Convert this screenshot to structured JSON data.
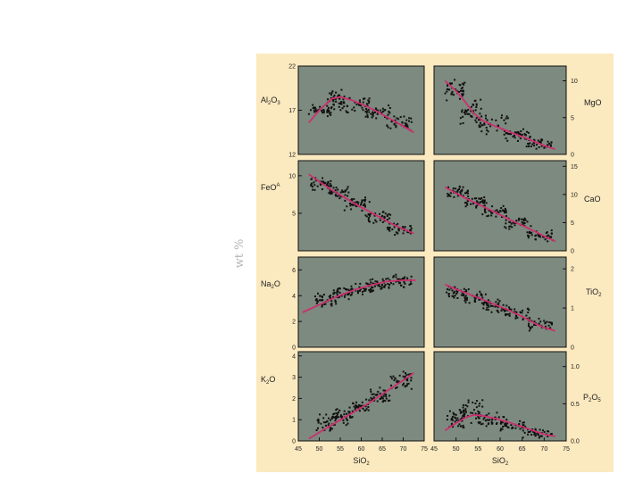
{
  "side_label": "wt %",
  "colors": {
    "background": "#fbe9bf",
    "plot_area": "#7d8a7f",
    "points": "#111111",
    "trend": "#cc2f6e",
    "frame": "#111111"
  },
  "chart_data": [
    {
      "type": "scatter",
      "panel": "Al2O3",
      "label": {
        "main": "Al",
        "sub1": "2",
        "mid": "O",
        "sub2": "3"
      },
      "xlim": [
        45,
        75
      ],
      "ylim": [
        12,
        22
      ],
      "yticks": [
        "12",
        "17",
        "22"
      ],
      "ytick_values": [
        12,
        17,
        22
      ],
      "xticks": [],
      "xlabel": "",
      "grid": false,
      "trend": [
        [
          47.5,
          15.6
        ],
        [
          50,
          17.0
        ],
        [
          53,
          18.3
        ],
        [
          55,
          18.5
        ],
        [
          58,
          18.1
        ],
        [
          61,
          17.5
        ],
        [
          64,
          16.8
        ],
        [
          67,
          16.0
        ],
        [
          70,
          15.2
        ],
        [
          72.5,
          14.5
        ]
      ],
      "cloud": [
        [
          47.5,
          53,
          16.0,
          18.0
        ],
        [
          52,
          56,
          16.8,
          19.6
        ],
        [
          55,
          62,
          16.5,
          18.8
        ],
        [
          61,
          67,
          16.0,
          17.6
        ],
        [
          66,
          72,
          14.6,
          16.6
        ]
      ]
    },
    {
      "type": "scatter",
      "panel": "MgO",
      "label": {
        "main": "MgO",
        "sub1": "",
        "mid": "",
        "sub2": ""
      },
      "xlim": [
        45,
        75
      ],
      "ylim": [
        0,
        12
      ],
      "yticks": [
        "0",
        "5",
        "10"
      ],
      "ytick_values": [
        0,
        5,
        10
      ],
      "xticks": [],
      "xlabel": "",
      "grid": false,
      "trend": [
        [
          47.5,
          10.0
        ],
        [
          50,
          8.6
        ],
        [
          52,
          7.2
        ],
        [
          54,
          5.6
        ],
        [
          56,
          4.6
        ],
        [
          59,
          3.8
        ],
        [
          62,
          3.1
        ],
        [
          65,
          2.4
        ],
        [
          68,
          1.7
        ],
        [
          70,
          1.2
        ],
        [
          72.5,
          0.7
        ]
      ],
      "cloud": [
        [
          47.5,
          52,
          7.0,
          10.2
        ],
        [
          51,
          56,
          4.0,
          8.0
        ],
        [
          55,
          62,
          2.6,
          5.6
        ],
        [
          61,
          67,
          1.6,
          3.6
        ],
        [
          66,
          72,
          0.6,
          2.2
        ]
      ]
    },
    {
      "type": "scatter",
      "panel": "FeO*",
      "label": {
        "main": "FeO",
        "sub1": "",
        "mid": "",
        "sub2": "",
        "sup": "A"
      },
      "xlim": [
        45,
        75
      ],
      "ylim": [
        0,
        12
      ],
      "yticks": [
        "5",
        "10"
      ],
      "ytick_values": [
        5,
        10
      ],
      "xticks": [],
      "xlabel": "",
      "grid": false,
      "trend": [
        [
          47.5,
          10.2
        ],
        [
          50,
          9.2
        ],
        [
          53,
          8.1
        ],
        [
          56,
          7.1
        ],
        [
          59,
          6.1
        ],
        [
          62,
          5.2
        ],
        [
          65,
          4.3
        ],
        [
          68,
          3.4
        ],
        [
          70,
          2.9
        ],
        [
          72.5,
          2.3
        ]
      ],
      "cloud": [
        [
          48,
          53,
          8.0,
          10.0
        ],
        [
          52,
          57,
          6.8,
          8.8
        ],
        [
          56,
          62,
          5.2,
          7.2
        ],
        [
          61,
          67,
          3.6,
          5.6
        ],
        [
          66,
          72,
          2.0,
          3.8
        ]
      ]
    },
    {
      "type": "scatter",
      "panel": "CaO",
      "label": {
        "main": "CaO",
        "sub1": "",
        "mid": "",
        "sub2": ""
      },
      "xlim": [
        45,
        75
      ],
      "ylim": [
        0,
        16
      ],
      "yticks": [
        "0",
        "5",
        "10",
        "15"
      ],
      "ytick_values": [
        0,
        5,
        10,
        15
      ],
      "xticks": [],
      "xlabel": "",
      "grid": false,
      "trend": [
        [
          47.5,
          11.3
        ],
        [
          50,
          10.2
        ],
        [
          53,
          9.0
        ],
        [
          56,
          7.9
        ],
        [
          59,
          6.8
        ],
        [
          62,
          5.6
        ],
        [
          65,
          4.5
        ],
        [
          68,
          3.4
        ],
        [
          70,
          2.6
        ],
        [
          72.5,
          1.7
        ]
      ],
      "cloud": [
        [
          48,
          53,
          9.2,
          11.6
        ],
        [
          52,
          57,
          7.6,
          9.8
        ],
        [
          56,
          62,
          5.8,
          8.2
        ],
        [
          61,
          67,
          3.8,
          6.0
        ],
        [
          66,
          72,
          1.6,
          3.8
        ]
      ]
    },
    {
      "type": "scatter",
      "panel": "Na2O",
      "label": {
        "main": "Na",
        "sub1": "2",
        "mid": "O",
        "sub2": ""
      },
      "xlim": [
        45,
        75
      ],
      "ylim": [
        0,
        7
      ],
      "yticks": [
        "0",
        "2",
        "4",
        "6"
      ],
      "ytick_values": [
        0,
        2,
        4,
        6
      ],
      "xticks": [],
      "xlabel": "",
      "grid": false,
      "trend": [
        [
          46,
          2.7
        ],
        [
          50,
          3.3
        ],
        [
          54,
          3.9
        ],
        [
          58,
          4.4
        ],
        [
          62,
          4.8
        ],
        [
          66,
          5.1
        ],
        [
          70,
          5.2
        ],
        [
          73,
          5.2
        ]
      ],
      "cloud": [
        [
          49,
          54,
          3.0,
          4.2
        ],
        [
          53,
          58,
          3.6,
          4.8
        ],
        [
          57,
          63,
          4.0,
          5.0
        ],
        [
          62,
          67,
          4.4,
          5.4
        ],
        [
          67,
          72,
          4.6,
          5.7
        ]
      ]
    },
    {
      "type": "scatter",
      "panel": "TiO2",
      "label": {
        "main": "TiO",
        "sub1": "",
        "mid": "",
        "sub2": "2"
      },
      "xlim": [
        45,
        75
      ],
      "ylim": [
        0,
        2.3
      ],
      "yticks": [
        "0",
        "1",
        "2"
      ],
      "ytick_values": [
        0,
        1,
        2
      ],
      "xticks": [],
      "xlabel": "",
      "grid": false,
      "trend": [
        [
          47.5,
          1.6
        ],
        [
          50,
          1.48
        ],
        [
          53,
          1.35
        ],
        [
          56,
          1.22
        ],
        [
          59,
          1.08
        ],
        [
          62,
          0.94
        ],
        [
          65,
          0.78
        ],
        [
          68,
          0.6
        ],
        [
          70,
          0.5
        ],
        [
          72.5,
          0.42
        ]
      ],
      "cloud": [
        [
          47.5,
          53,
          1.2,
          1.6
        ],
        [
          52,
          57,
          1.05,
          1.45
        ],
        [
          56,
          62,
          0.85,
          1.25
        ],
        [
          61,
          67,
          0.65,
          1.05
        ],
        [
          66,
          72,
          0.4,
          0.75
        ]
      ]
    },
    {
      "type": "scatter",
      "panel": "K2O",
      "label": {
        "main": "K",
        "sub1": "2",
        "mid": "O",
        "sub2": ""
      },
      "xlim": [
        45,
        75
      ],
      "ylim": [
        0,
        4.2
      ],
      "yticks": [
        "0",
        "1",
        "2",
        "3",
        "4"
      ],
      "ytick_values": [
        0,
        1,
        2,
        3,
        4
      ],
      "xticks": [
        "45",
        "50",
        "55",
        "60",
        "65",
        "70",
        "75"
      ],
      "xtick_values": [
        45,
        50,
        55,
        60,
        65,
        70,
        75
      ],
      "xlabel": {
        "main": "SiO",
        "sub": "2"
      },
      "grid": false,
      "trend": [
        [
          47.5,
          0.1
        ],
        [
          50,
          0.4
        ],
        [
          53,
          0.75
        ],
        [
          56,
          1.1
        ],
        [
          59,
          1.45
        ],
        [
          62,
          1.8
        ],
        [
          65,
          2.2
        ],
        [
          68,
          2.6
        ],
        [
          70,
          2.85
        ],
        [
          72.5,
          3.2
        ]
      ],
      "cloud": [
        [
          49,
          54,
          0.4,
          1.3
        ],
        [
          53,
          58,
          0.7,
          1.6
        ],
        [
          57,
          62,
          1.2,
          2.0
        ],
        [
          62,
          67,
          1.7,
          2.6
        ],
        [
          67,
          72,
          2.4,
          3.3
        ]
      ]
    },
    {
      "type": "scatter",
      "panel": "P2O5",
      "label": {
        "main": "P",
        "sub1": "2",
        "mid": "O",
        "sub2": "5"
      },
      "xlim": [
        45,
        75
      ],
      "ylim": [
        0,
        1.2
      ],
      "yticks": [
        "0.0",
        "0.5",
        "1.0"
      ],
      "ytick_values": [
        0,
        0.5,
        1.0
      ],
      "xticks": [
        "45",
        "50",
        "55",
        "60",
        "65",
        "70",
        "75"
      ],
      "xtick_values": [
        45,
        50,
        55,
        60,
        65,
        70,
        75
      ],
      "xlabel": {
        "main": "SiO",
        "sub": "2"
      },
      "grid": false,
      "trend": [
        [
          47.5,
          0.14
        ],
        [
          50,
          0.24
        ],
        [
          52,
          0.31
        ],
        [
          54,
          0.35
        ],
        [
          56,
          0.34
        ],
        [
          59,
          0.3
        ],
        [
          62,
          0.25
        ],
        [
          65,
          0.19
        ],
        [
          68,
          0.13
        ],
        [
          70,
          0.09
        ],
        [
          72.5,
          0.06
        ]
      ],
      "cloud": [
        [
          48,
          52,
          0.15,
          0.45
        ],
        [
          51,
          56,
          0.2,
          0.6
        ],
        [
          55,
          61,
          0.18,
          0.4
        ],
        [
          60,
          66,
          0.12,
          0.3
        ],
        [
          65,
          72,
          0.03,
          0.18
        ]
      ]
    }
  ]
}
